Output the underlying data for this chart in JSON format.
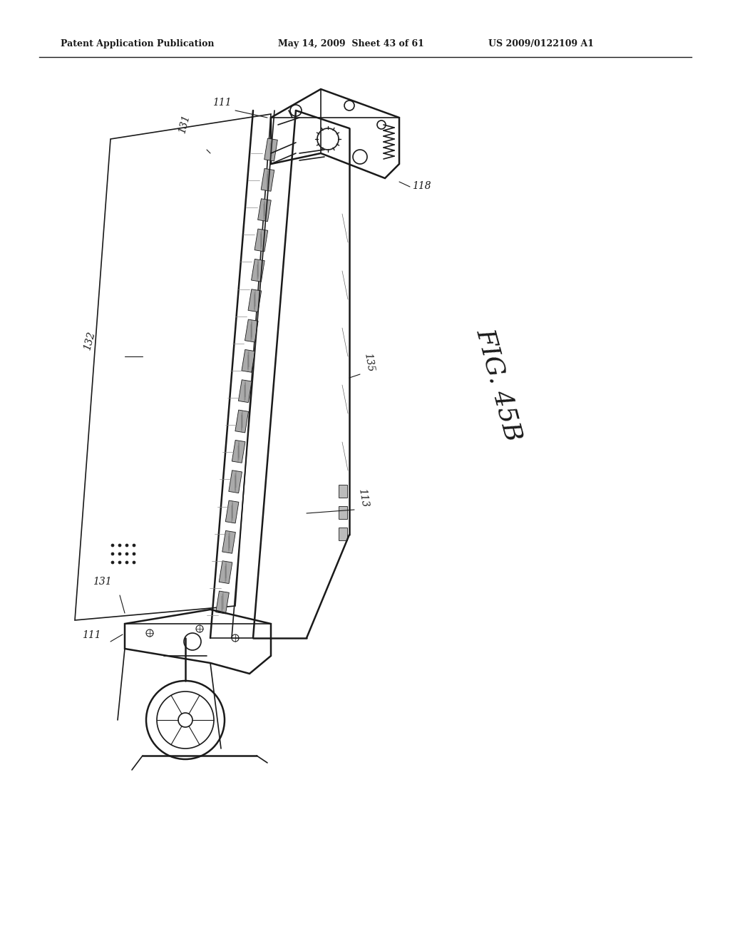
{
  "background_color": "#ffffff",
  "header_left": "Patent Application Publication",
  "header_center": "May 14, 2009  Sheet 43 of 61",
  "header_right": "US 2009/0122109 A1",
  "figure_label": "FIG. 45B",
  "reference_numbers": [
    "111",
    "131",
    "132",
    "118",
    "135",
    "113"
  ],
  "fig_width": 10.24,
  "fig_height": 13.2,
  "dpi": 100
}
